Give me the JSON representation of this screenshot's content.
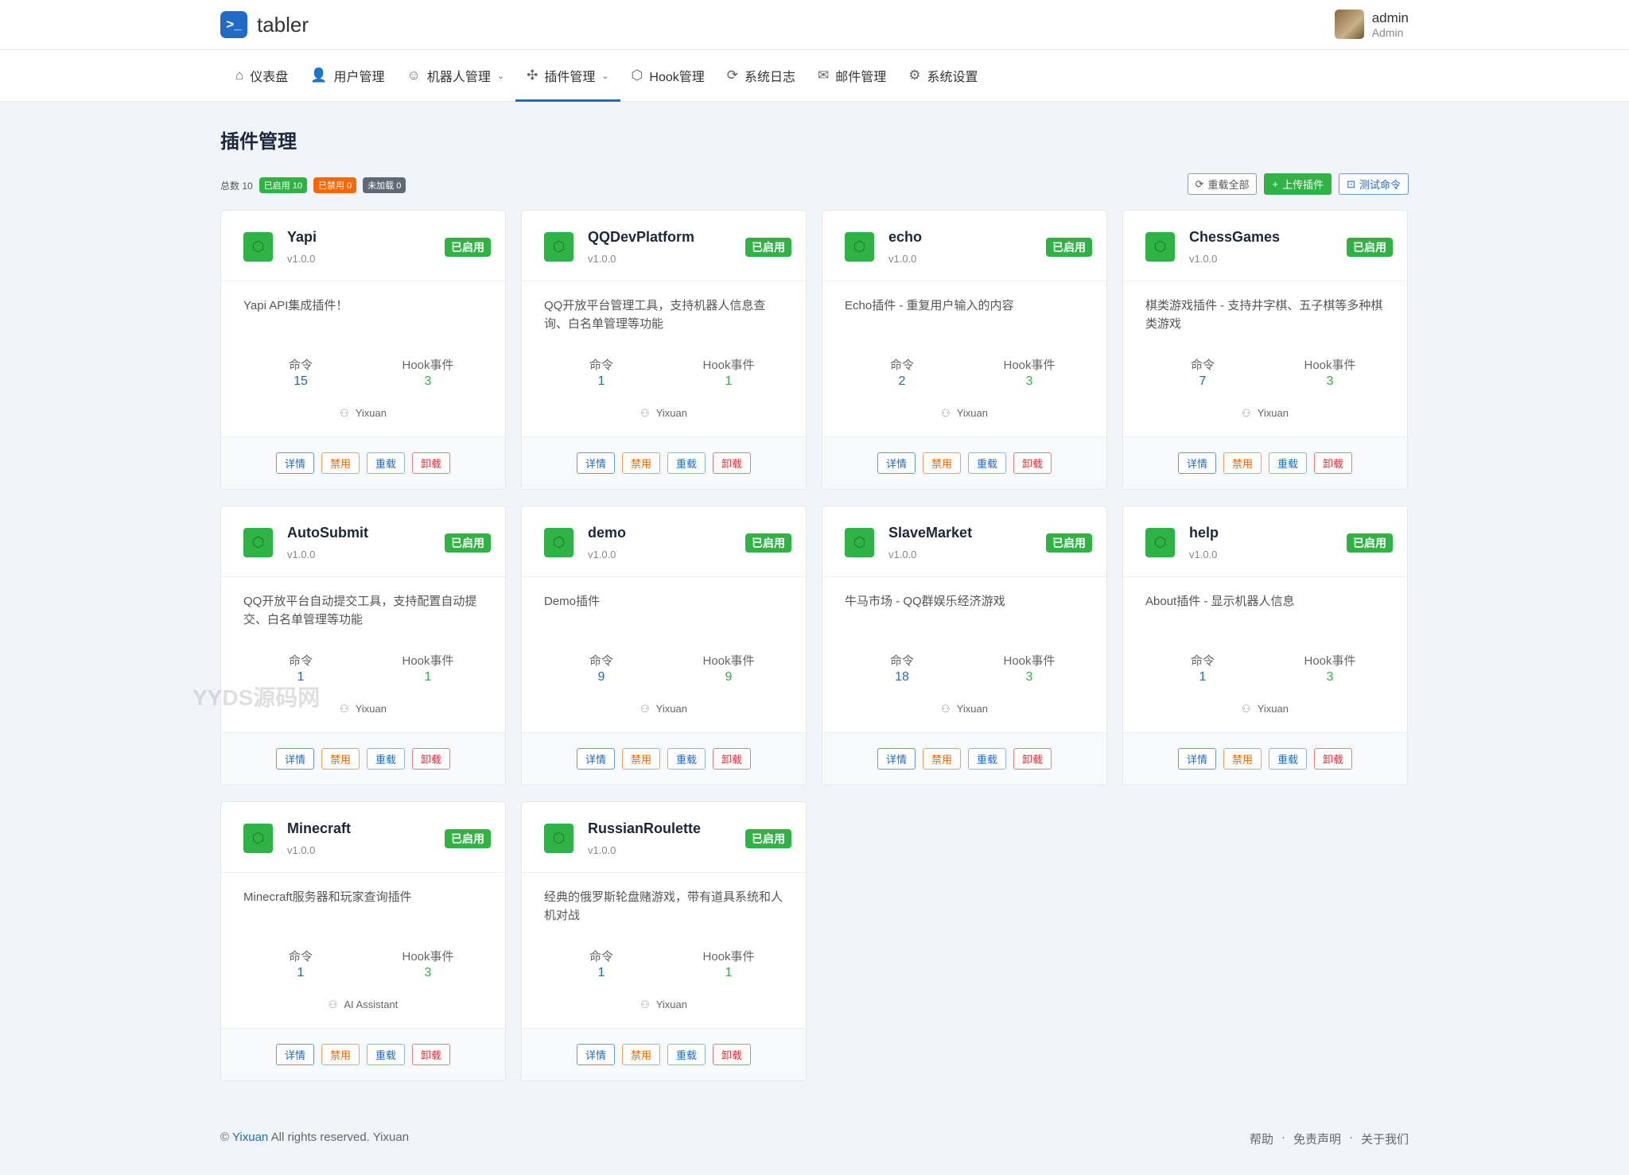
{
  "brand": {
    "name": "tabler",
    "accent": "#206bc4"
  },
  "user": {
    "name": "admin",
    "role": "Admin"
  },
  "nav": [
    {
      "label": "仪表盘",
      "icon": "home-icon",
      "glyph": "⌂"
    },
    {
      "label": "用户管理",
      "icon": "users-icon",
      "glyph": "👤"
    },
    {
      "label": "机器人管理",
      "icon": "robot-icon",
      "glyph": "☺",
      "dropdown": true
    },
    {
      "label": "插件管理",
      "icon": "puzzle-icon",
      "glyph": "✣",
      "dropdown": true,
      "active": true
    },
    {
      "label": "Hook管理",
      "icon": "cube-icon",
      "glyph": "⬡"
    },
    {
      "label": "系统日志",
      "icon": "refresh-icon",
      "glyph": "⟳"
    },
    {
      "label": "邮件管理",
      "icon": "mail-icon",
      "glyph": "✉"
    },
    {
      "label": "系统设置",
      "icon": "gear-icon",
      "glyph": "⚙"
    }
  ],
  "page": {
    "title": "插件管理",
    "total": "总数 10",
    "enabled": "已启用 10",
    "disabled": "已禁用 0",
    "unloaded": "未加载 0"
  },
  "actions": {
    "reload_all": "重载全部",
    "upload": "上传插件",
    "test": "测试命令"
  },
  "labels": {
    "commands": "命令",
    "hooks": "Hook事件",
    "status": "已启用",
    "detail": "详情",
    "disable": "禁用",
    "reload": "重载",
    "uninstall": "卸载"
  },
  "plugins": [
    {
      "name": "Yapi",
      "version": "v1.0.0",
      "desc": "Yapi API集成插件！",
      "commands": 15,
      "hooks": 3,
      "author": "Yixuan"
    },
    {
      "name": "QQDevPlatform",
      "version": "v1.0.0",
      "desc": "QQ开放平台管理工具，支持机器人信息查询、白名单管理等功能",
      "commands": 1,
      "hooks": 1,
      "author": "Yixuan"
    },
    {
      "name": "echo",
      "version": "v1.0.0",
      "desc": "Echo插件 - 重复用户输入的内容",
      "commands": 2,
      "hooks": 3,
      "author": "Yixuan"
    },
    {
      "name": "ChessGames",
      "version": "v1.0.0",
      "desc": "棋类游戏插件 - 支持井字棋、五子棋等多种棋类游戏",
      "commands": 7,
      "hooks": 3,
      "author": "Yixuan"
    },
    {
      "name": "AutoSubmit",
      "version": "v1.0.0",
      "desc": "QQ开放平台自动提交工具，支持配置自动提交、白名单管理等功能",
      "commands": 1,
      "hooks": 1,
      "author": "Yixuan"
    },
    {
      "name": "demo",
      "version": "v1.0.0",
      "desc": "Demo插件",
      "commands": 9,
      "hooks": 9,
      "author": "Yixuan"
    },
    {
      "name": "SlaveMarket",
      "version": "v1.0.0",
      "desc": "牛马市场 - QQ群娱乐经济游戏",
      "commands": 18,
      "hooks": 3,
      "author": "Yixuan"
    },
    {
      "name": "help",
      "version": "v1.0.0",
      "desc": "About插件 - 显示机器人信息",
      "commands": 1,
      "hooks": 3,
      "author": "Yixuan"
    },
    {
      "name": "Minecraft",
      "version": "v1.0.0",
      "desc": "Minecraft服务器和玩家查询插件",
      "commands": 1,
      "hooks": 3,
      "author": "AI Assistant"
    },
    {
      "name": "RussianRoulette",
      "version": "v1.0.0",
      "desc": "经典的俄罗斯轮盘赌游戏，带有道具系统和人机对战",
      "commands": 1,
      "hooks": 1,
      "author": "Yixuan"
    }
  ],
  "footer": {
    "copyright": "©",
    "owner": "Yixuan",
    "rights": "All rights reserved. Yixuan",
    "links": [
      "帮助",
      "免责声明",
      "关于我们"
    ]
  },
  "watermark": "YYDS源码网",
  "colors": {
    "green": "#2fb344",
    "orange": "#f76707",
    "gray": "#616876",
    "blue": "#206bc4",
    "red": "#d63939"
  }
}
